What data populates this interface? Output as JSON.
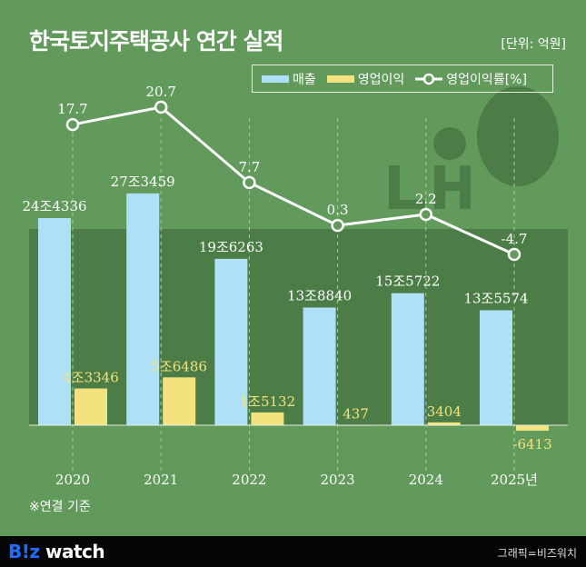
{
  "title": "한국토지주택공사 연간 실적",
  "unit": "[단위: 억원]",
  "note": "※연결 기준",
  "footer": {
    "logo_b": "B!z",
    "logo_rest": " watch",
    "credit": "그래픽=비즈워치"
  },
  "colors": {
    "background": "#629a5c",
    "panel": "#4d7d47",
    "revenue": "#aee0f7",
    "operating_profit": "#f2e37e",
    "line": "#ffffff"
  },
  "chart_data": {
    "type": "bar+line",
    "categories": [
      "2020",
      "2021",
      "2022",
      "2023",
      "2024",
      "2025년"
    ],
    "legend_position": "top-right",
    "series": [
      {
        "name": "매출",
        "type": "bar",
        "values": [
          244336,
          273459,
          196263,
          138840,
          155722,
          135574
        ],
        "labels": [
          "24조4336",
          "27조3459",
          "19조6263",
          "13조8840",
          "15조5722",
          "13조5574"
        ]
      },
      {
        "name": "영업이익",
        "type": "bar",
        "values": [
          43346,
          56486,
          15132,
          437,
          3404,
          -6413
        ],
        "labels": [
          "4조3346",
          "5조6486",
          "1조5132",
          "437",
          "3404",
          "-6413"
        ]
      },
      {
        "name": "영업이익률[%]",
        "type": "line",
        "values": [
          17.7,
          20.7,
          7.7,
          0.3,
          2.2,
          -4.7
        ],
        "labels": [
          "17.7",
          "20.7",
          "7.7",
          "0.3",
          "2.2",
          "-4.7"
        ]
      }
    ]
  }
}
